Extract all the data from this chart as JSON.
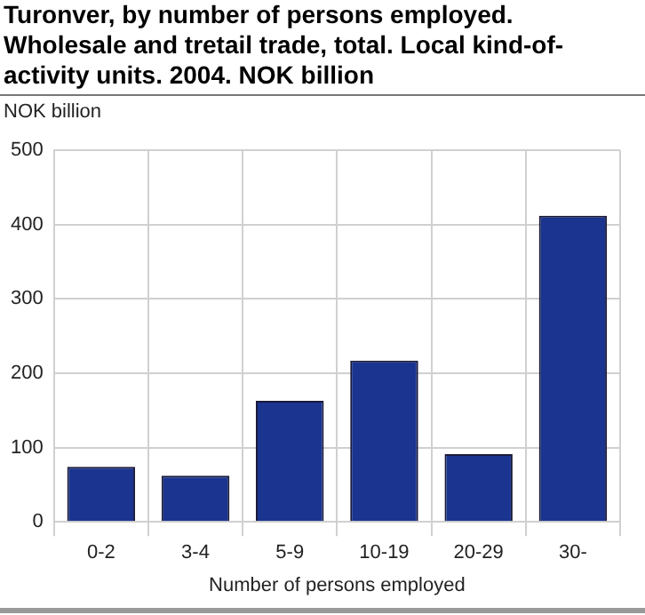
{
  "chart_data": {
    "type": "bar",
    "title": "Turonver, by number of persons employed. Wholesale and tretail trade, total. Local kind-of-activity units. 2004. NOK billion",
    "ylabel": "NOK billion",
    "xlabel": "Number of persons employed",
    "categories": [
      "0-2",
      "3-4",
      "5-9",
      "10-19",
      "20-29",
      "30-"
    ],
    "values": [
      74,
      62,
      163,
      217,
      91,
      412
    ],
    "color": "#1a3490",
    "ylim": [
      0,
      500
    ],
    "yticks": [
      0,
      100,
      200,
      300,
      400,
      500
    ],
    "grid": true,
    "legend": false
  }
}
